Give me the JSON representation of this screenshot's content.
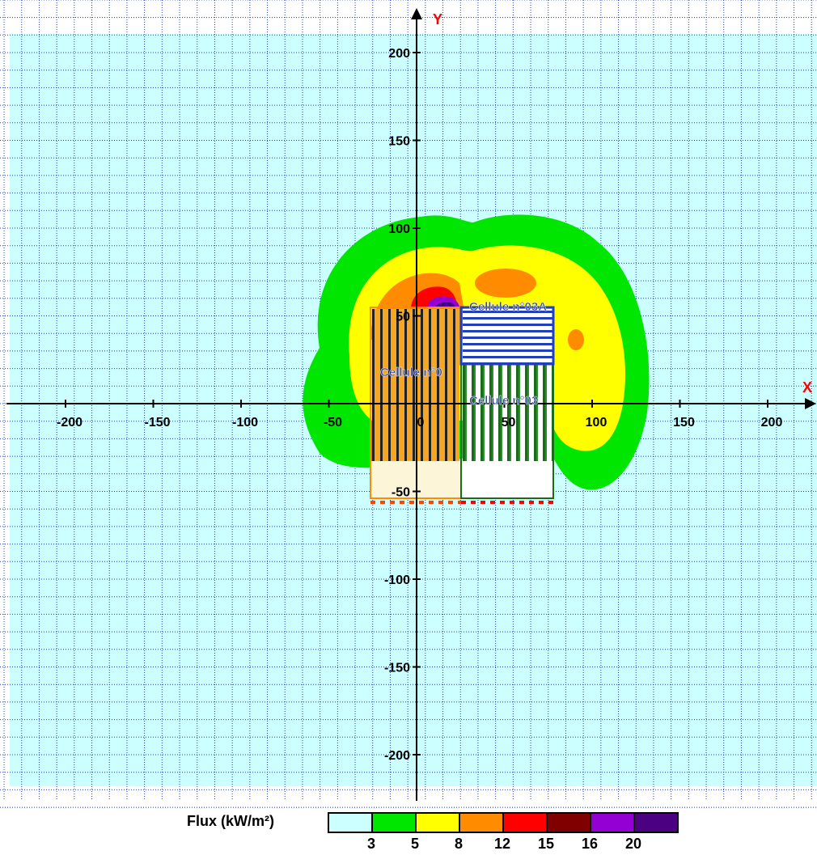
{
  "axes": {
    "x_label": "X",
    "y_label": "Y",
    "x_ticks": [
      -200,
      -150,
      -100,
      -50,
      0,
      50,
      100,
      150,
      200
    ],
    "y_ticks": [
      200,
      150,
      100,
      50,
      -50,
      -100,
      -150,
      -200
    ],
    "x_range": [
      -230,
      225
    ],
    "y_range": [
      -235,
      220
    ],
    "grid": true
  },
  "cells": [
    {
      "name": "Cellule n°0",
      "x": [
        -25,
        25
      ],
      "y": [
        -55,
        55
      ]
    },
    {
      "name": "Cellule n°03A",
      "x": [
        25,
        77
      ],
      "y": [
        20,
        55
      ]
    },
    {
      "name": "Cellule n°03",
      "x": [
        25,
        77
      ],
      "y": [
        -55,
        20
      ]
    }
  ],
  "legend": {
    "title": "Flux (kW/m²)",
    "colors": [
      "#ccffff",
      "#00e600",
      "#ffff00",
      "#ff8c00",
      "#ff0000",
      "#800000",
      "#9400d3",
      "#4b0082"
    ],
    "values": [
      "3",
      "5",
      "8",
      "12",
      "15",
      "16",
      "20"
    ]
  }
}
